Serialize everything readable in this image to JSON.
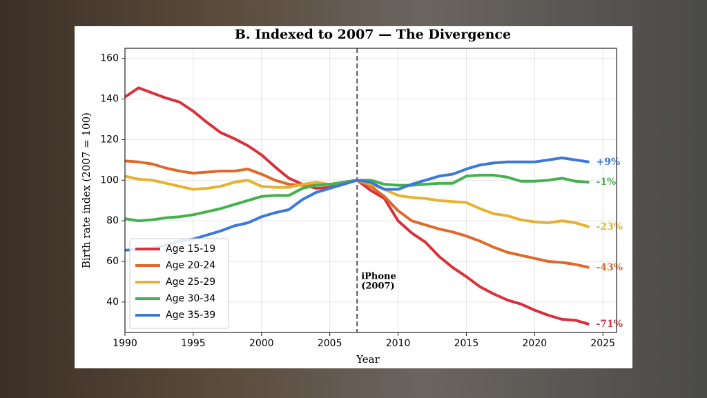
{
  "chart_data": {
    "type": "line",
    "title": "B. Indexed to 2007 — The Divergence",
    "x_label": "Year",
    "y_label": "Birth rate index (2007 = 100)",
    "x": [
      1990,
      1991,
      1992,
      1993,
      1994,
      1995,
      1996,
      1997,
      1998,
      1999,
      2000,
      2001,
      2002,
      2003,
      2004,
      2005,
      2006,
      2007,
      2008,
      2009,
      2010,
      2011,
      2012,
      2013,
      2014,
      2015,
      2016,
      2017,
      2018,
      2019,
      2020,
      2021,
      2022,
      2023,
      2024
    ],
    "series": [
      {
        "name": "Age 15-19",
        "color": "#d8313b",
        "end_label": "-71%",
        "values": [
          141,
          145.5,
          143,
          140.5,
          138.5,
          134,
          128.5,
          123.5,
          120.5,
          117,
          112.5,
          106.5,
          101,
          98,
          96,
          96.5,
          98.5,
          100,
          95,
          91,
          80,
          74,
          69.5,
          62.5,
          57,
          52.5,
          47.5,
          44,
          41,
          39,
          36,
          33.5,
          31.5,
          31,
          29
        ]
      },
      {
        "name": "Age 20-24",
        "color": "#e0692a",
        "end_label": "-43%",
        "values": [
          109.5,
          109,
          108,
          106,
          104.5,
          103.5,
          104,
          104.5,
          104.5,
          105.5,
          103,
          100,
          98,
          97.5,
          97.5,
          98,
          99,
          100,
          97,
          92,
          85,
          80,
          78,
          76,
          74.5,
          72.5,
          70,
          67,
          64.5,
          63,
          61.5,
          60,
          59.5,
          58.5,
          57
        ]
      },
      {
        "name": "Age 25-29",
        "color": "#e8b12f",
        "end_label": "-23%",
        "values": [
          102,
          100.5,
          100,
          98.5,
          97,
          95.5,
          96,
          97,
          99,
          100,
          97,
          96.5,
          96.5,
          98,
          99,
          98,
          99,
          100,
          98,
          95.5,
          92.5,
          91.5,
          91,
          90,
          89.5,
          89,
          86,
          83.5,
          82.5,
          80.5,
          79.5,
          79,
          80,
          79,
          77
        ]
      },
      {
        "name": "Age 30-34",
        "color": "#44b14f",
        "end_label": "-1%",
        "values": [
          81,
          80,
          80.5,
          81.5,
          82,
          83,
          84.5,
          86,
          88,
          90,
          92,
          92.5,
          92.5,
          96,
          97.5,
          98,
          99,
          100,
          100,
          98,
          97.5,
          97.5,
          98,
          98.5,
          98.5,
          102,
          102.5,
          102.5,
          101.5,
          99.5,
          99.5,
          100,
          101,
          99.5,
          99
        ]
      },
      {
        "name": "Age 35-39",
        "color": "#3b78d9",
        "end_label": "+9%",
        "values": [
          65.5,
          66,
          66.5,
          68,
          70,
          71,
          73,
          75,
          77.5,
          79,
          82,
          84,
          85.5,
          90.5,
          94,
          96,
          98,
          100,
          99,
          95.5,
          95.5,
          98,
          100,
          102,
          103,
          105.5,
          107.5,
          108.5,
          109,
          109,
          109,
          110,
          111,
          110,
          109
        ]
      }
    ],
    "annotation": {
      "x": 2007,
      "label": [
        "iPhone",
        "(2007)"
      ]
    },
    "xlim": [
      1990,
      2026
    ],
    "ylim": [
      25,
      165
    ],
    "xticks": [
      1990,
      1995,
      2000,
      2005,
      2010,
      2015,
      2020,
      2025
    ],
    "yticks": [
      40,
      60,
      80,
      100,
      120,
      140,
      160
    ],
    "grid": true,
    "legend": "lower left"
  }
}
